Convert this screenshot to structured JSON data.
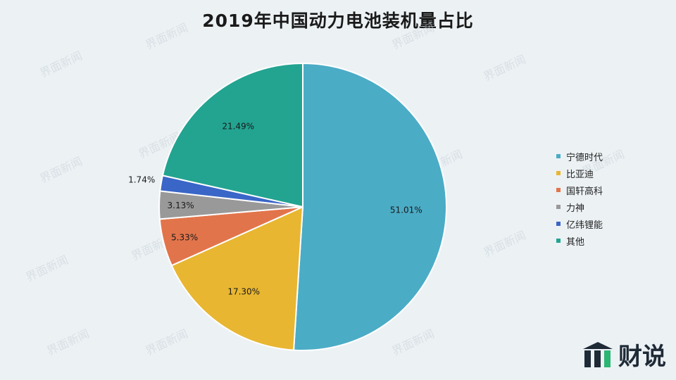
{
  "chart_data": {
    "type": "pie",
    "title": "2019年中国动力电池装机量占比",
    "slices": [
      {
        "label": "宁德时代",
        "value": 51.01,
        "text": "51.01%",
        "color": "#4bacc6"
      },
      {
        "label": "比亚迪",
        "value": 17.3,
        "text": "17.30%",
        "color": "#e8b631"
      },
      {
        "label": "国轩高科",
        "value": 5.33,
        "text": "5.33%",
        "color": "#e2744b"
      },
      {
        "label": "力神",
        "value": 3.13,
        "text": "3.13%",
        "color": "#999999"
      },
      {
        "label": "亿纬锂能",
        "value": 1.74,
        "text": "1.74%",
        "color": "#3a66c7"
      },
      {
        "label": "其他",
        "value": 21.49,
        "text": "21.49%",
        "color": "#22a491"
      }
    ],
    "legend_position": "right",
    "start_angle": "12 o'clock",
    "direction": "clockwise"
  },
  "watermarks": {
    "source_text": "界面新闻",
    "logo_text": "财说"
  }
}
